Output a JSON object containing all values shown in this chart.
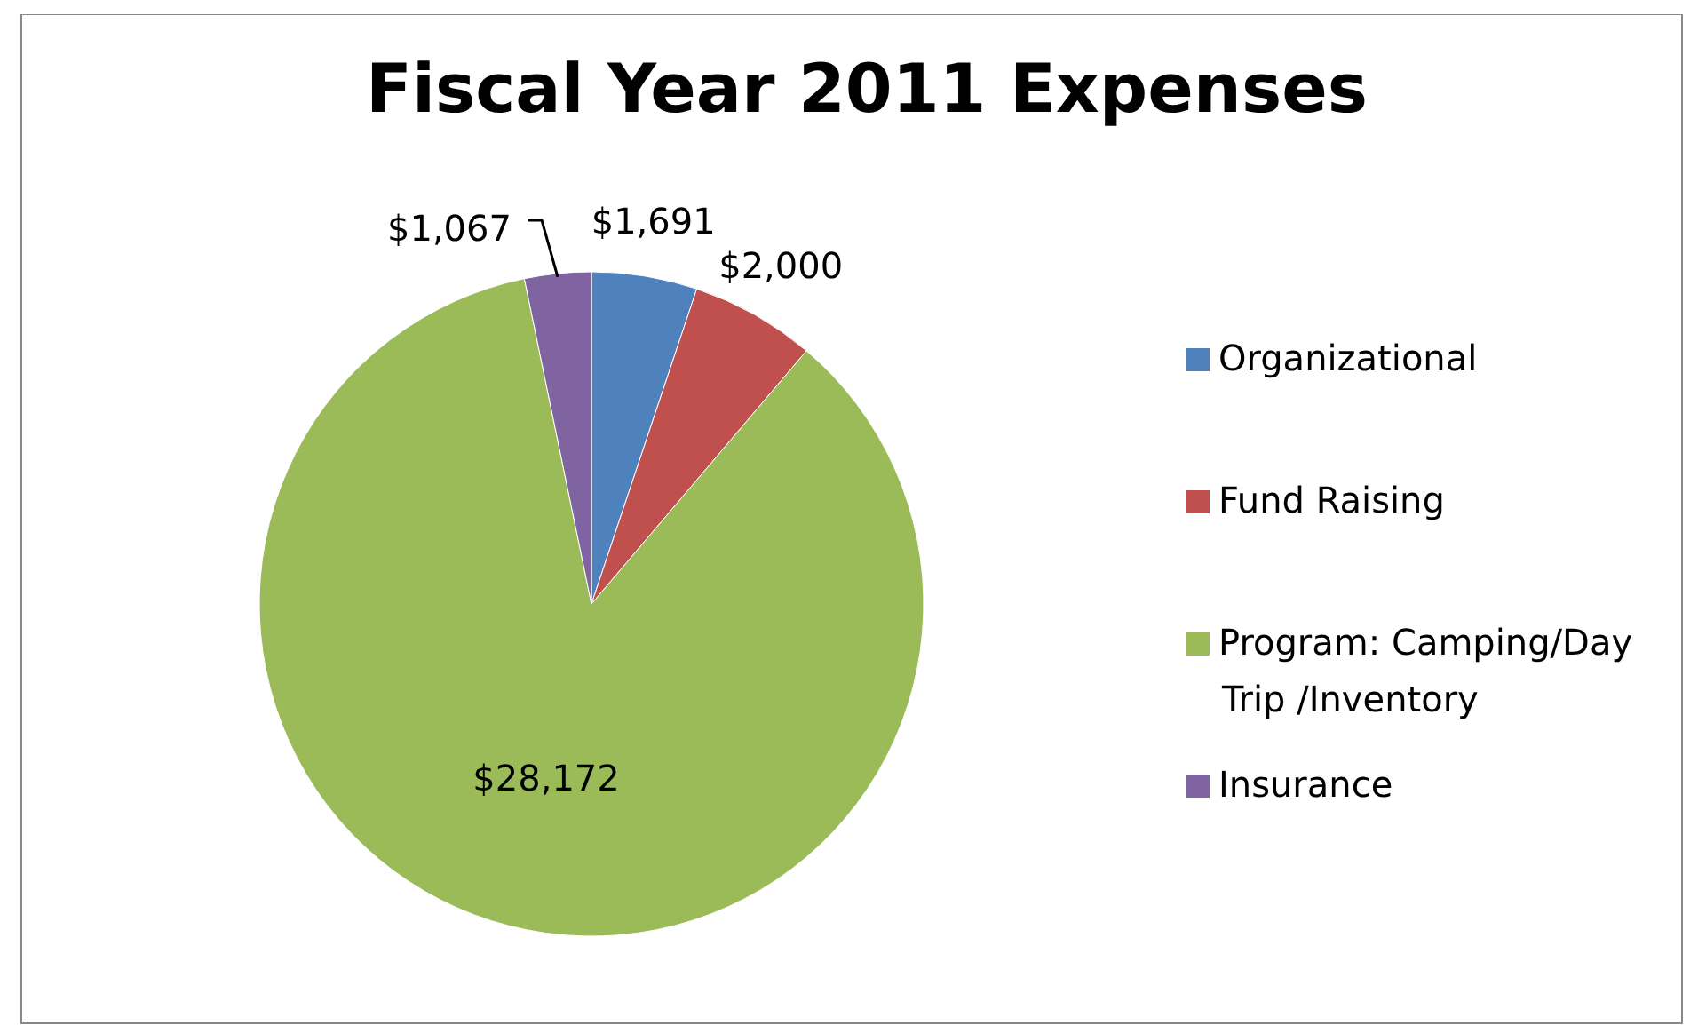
{
  "chart_data": {
    "type": "pie",
    "title": "Fiscal Year 2011 Expenses",
    "categories": [
      "Organizational",
      "Fund Raising",
      "Program: Camping/Day Trip /Inventory",
      "Insurance"
    ],
    "values": [
      1691,
      2000,
      28172,
      1067
    ],
    "colors": [
      "#4f81bd",
      "#c0504d",
      "#9bbb59",
      "#8064a2"
    ],
    "value_labels": [
      "$1,691",
      "$2,000",
      "$28,172",
      "$1,067"
    ],
    "legend": "right"
  }
}
